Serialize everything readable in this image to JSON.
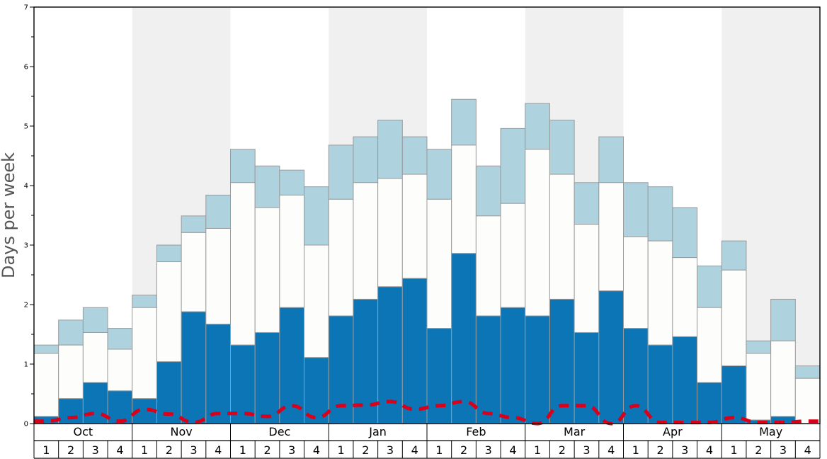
{
  "chart_data": {
    "type": "bar",
    "ylabel": "Days per week",
    "xlabel": "",
    "ylim": [
      0,
      7
    ],
    "y_ticks": [
      "0",
      "1",
      "2",
      "3",
      "4",
      "5",
      "6",
      "7"
    ],
    "months": [
      "Oct",
      "Nov",
      "Dec",
      "Jan",
      "Feb",
      "Mar",
      "Apr",
      "May"
    ],
    "weeks": [
      "1",
      "2",
      "3",
      "4"
    ],
    "alternating_month_shading": true,
    "colors": {
      "bottom": "#0b75b5",
      "middle": "#fdfdfb",
      "top": "#aed3df",
      "shade": "#f0f0f0",
      "line": "#d9001b",
      "bar_edge": "#9a9a9a"
    },
    "series": [
      {
        "values": [
          0.12,
          0.42,
          0.69,
          0.55,
          0.42,
          1.04,
          1.88,
          1.67,
          1.32,
          1.53,
          1.95,
          1.11,
          1.81,
          2.09,
          2.3,
          2.44,
          1.6,
          2.86,
          1.81,
          1.95,
          1.81,
          2.09,
          1.53,
          2.23,
          1.6,
          1.32,
          1.46,
          0.69,
          0.97,
          0.06,
          0.12,
          0.0
        ]
      },
      {
        "values": [
          1.18,
          1.32,
          1.53,
          1.25,
          1.95,
          2.72,
          3.21,
          3.28,
          4.05,
          3.63,
          3.84,
          3.0,
          3.77,
          4.05,
          4.12,
          4.19,
          3.77,
          4.68,
          3.49,
          3.7,
          4.61,
          4.19,
          3.35,
          4.05,
          3.14,
          3.07,
          2.79,
          1.95,
          2.58,
          1.18,
          1.39,
          0.76
        ]
      },
      {
        "values": [
          1.32,
          1.74,
          1.95,
          1.6,
          2.16,
          3.0,
          3.49,
          3.84,
          4.61,
          4.33,
          4.26,
          3.98,
          4.68,
          4.82,
          5.1,
          4.82,
          4.61,
          5.45,
          4.33,
          4.96,
          5.38,
          5.1,
          4.05,
          4.82,
          4.05,
          3.98,
          3.63,
          2.65,
          3.07,
          1.39,
          2.09,
          0.97
        ]
      },
      {
        "type": "line",
        "values": [
          0.04,
          0.1,
          0.17,
          0.04,
          0.24,
          0.16,
          0.02,
          0.17,
          0.17,
          0.12,
          0.3,
          0.1,
          0.3,
          0.31,
          0.37,
          0.24,
          0.3,
          0.37,
          0.17,
          0.1,
          0.0,
          0.3,
          0.3,
          0.0,
          0.3,
          0.02,
          0.02,
          0.02,
          0.1,
          0.02,
          0.02,
          0.04
        ]
      }
    ]
  }
}
